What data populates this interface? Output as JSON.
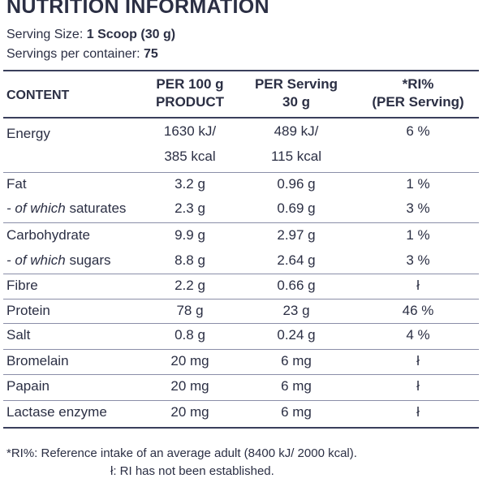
{
  "title": "NUTRITION INFORMATION",
  "serving_size": {
    "label": "Serving Size: ",
    "value": "1 Scoop (30 g)"
  },
  "servings_per_container": {
    "label": "Servings per container: ",
    "value": "75"
  },
  "headers": {
    "content": "CONTENT",
    "per100_line1": "PER 100 g",
    "per100_line2": "PRODUCT",
    "serving_line1": "PER Serving",
    "serving_line2": "30 g",
    "ri_line1": "*RI%",
    "ri_line2": "(PER Serving)"
  },
  "rows": [
    {
      "label": "Energy",
      "per100": "1630 kJ/",
      "serving": "489 kJ/",
      "ri": "6 %"
    },
    {
      "label": "",
      "per100": "385 kcal",
      "serving": "115 kcal",
      "ri": ""
    },
    {
      "label": "Fat",
      "per100": "3.2 g",
      "serving": "0.96 g",
      "ri": "1 %"
    },
    {
      "label_prefix": "- of which",
      "label": " saturates",
      "per100": "2.3 g",
      "serving": "0.69 g",
      "ri": "3 %"
    },
    {
      "label": "Carbohydrate",
      "per100": "9.9 g",
      "serving": "2.97 g",
      "ri": "1 %"
    },
    {
      "label_prefix": "- of which",
      "label": " sugars",
      "per100": "8.8 g",
      "serving": "2.64 g",
      "ri": "3 %"
    },
    {
      "label": "Fibre",
      "per100": "2.2 g",
      "serving": "0.66 g",
      "ri": "ł"
    },
    {
      "label": "Protein",
      "per100": "78 g",
      "serving": "23 g",
      "ri": "46 %"
    },
    {
      "label": "Salt",
      "per100": "0.8 g",
      "serving": "0.24 g",
      "ri": "4 %"
    },
    {
      "label": "Bromelain",
      "per100": "20 mg",
      "serving": "6 mg",
      "ri": "ł"
    },
    {
      "label": "Papain",
      "per100": "20 mg",
      "serving": "6 mg",
      "ri": "ł"
    },
    {
      "label": "Lactase enzyme",
      "per100": "20 mg",
      "serving": "6 mg",
      "ri": "ł"
    }
  ],
  "footnotes": {
    "ri": "*RI%: Reference intake of an average adult (8400 kJ/ 2000 kcal).",
    "not_established": "ł: RI has not been established."
  }
}
